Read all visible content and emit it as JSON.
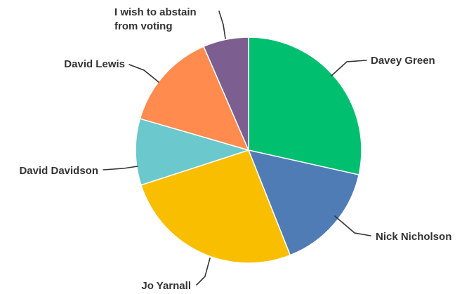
{
  "chart_data": {
    "type": "pie",
    "start_angle_deg": 0,
    "direction": "clockwise",
    "slices": [
      {
        "label": [
          "Davey Green"
        ],
        "value": 28.5,
        "color": "#00bf6f"
      },
      {
        "label": [
          "Nick Nicholson"
        ],
        "value": 15.5,
        "color": "#507cb6"
      },
      {
        "label": [
          "Jo Yarnall"
        ],
        "value": 26.0,
        "color": "#f9be00"
      },
      {
        "label": [
          "David Davidson"
        ],
        "value": 9.5,
        "color": "#6bc8cd"
      },
      {
        "label": [
          "David Lewis"
        ],
        "value": 14.0,
        "color": "#ff8b4f"
      },
      {
        "label": [
          "I wish to abstain",
          "from voting"
        ],
        "value": 6.5,
        "color": "#7d5e90"
      }
    ]
  }
}
